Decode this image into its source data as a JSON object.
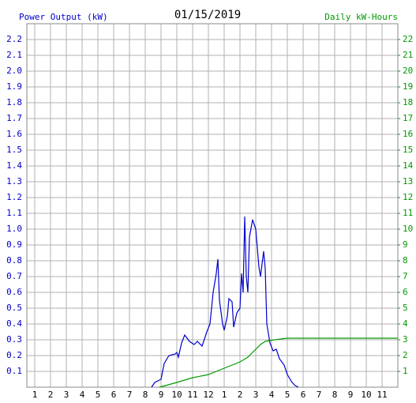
{
  "chart_data": {
    "type": "line",
    "title": "01/15/2019",
    "ylabel": "Power Output (kW)",
    "y2label": "Daily kW-Hours",
    "xlim": [
      0.5,
      24
    ],
    "ylim": [
      0,
      2.3
    ],
    "y2lim": [
      0,
      23
    ],
    "xticks": [
      1,
      2,
      3,
      4,
      5,
      6,
      7,
      8,
      9,
      10,
      11,
      12,
      {
        "value": 13,
        "label": "1"
      },
      {
        "value": 14,
        "label": "2"
      },
      {
        "value": 15,
        "label": "3"
      },
      {
        "value": 16,
        "label": "4"
      },
      {
        "value": 17,
        "label": "5"
      },
      {
        "value": 18,
        "label": "6"
      },
      {
        "value": 19,
        "label": "7"
      },
      {
        "value": 20,
        "label": "8"
      },
      {
        "value": 21,
        "label": "9"
      },
      {
        "value": 22,
        "label": "10"
      },
      {
        "value": 23,
        "label": "11"
      }
    ],
    "yticks": [
      0.1,
      0.2,
      0.3,
      0.4,
      0.5,
      0.6,
      0.7,
      0.8,
      0.9,
      {
        "value": 1,
        "label": "1.0"
      },
      1.1,
      1.2,
      1.3,
      1.4,
      1.5,
      1.6,
      1.7,
      1.8,
      1.9,
      {
        "value": 2,
        "label": "2.0"
      },
      2.1,
      2.2
    ],
    "y2ticks": [
      1,
      2,
      3,
      4,
      5,
      6,
      7,
      8,
      9,
      10,
      11,
      12,
      13,
      14,
      15,
      16,
      17,
      18,
      19,
      20,
      21,
      22
    ],
    "grid": true,
    "series": [
      {
        "name": "Power Output (kW)",
        "color": "#0000cc",
        "x": [
          8.4,
          8.6,
          9.0,
          9.2,
          9.5,
          9.9,
          10.0,
          10.1,
          10.3,
          10.5,
          10.8,
          11.1,
          11.3,
          11.6,
          11.9,
          12.1,
          12.3,
          12.5,
          12.6,
          12.7,
          12.9,
          13.0,
          13.2,
          13.3,
          13.5,
          13.6,
          13.8,
          14.0,
          14.1,
          14.2,
          14.3,
          14.4,
          14.5,
          14.6,
          14.8,
          15.0,
          15.2,
          15.3,
          15.5,
          15.6,
          15.7,
          15.9,
          16.1,
          16.3,
          16.5,
          16.8,
          17.0,
          17.3,
          17.5,
          17.7
        ],
        "values": [
          0,
          0.03,
          0.05,
          0.15,
          0.2,
          0.21,
          0.22,
          0.19,
          0.28,
          0.33,
          0.29,
          0.27,
          0.29,
          0.26,
          0.35,
          0.4,
          0.6,
          0.72,
          0.81,
          0.55,
          0.4,
          0.36,
          0.45,
          0.56,
          0.54,
          0.38,
          0.47,
          0.5,
          0.72,
          0.6,
          1.08,
          0.7,
          0.6,
          0.95,
          1.06,
          1.0,
          0.76,
          0.7,
          0.86,
          0.75,
          0.4,
          0.28,
          0.23,
          0.24,
          0.18,
          0.14,
          0.08,
          0.03,
          0.01,
          0
        ]
      },
      {
        "name": "Daily kW-Hours",
        "color": "#009900",
        "axis": "y2",
        "x": [
          8.9,
          10.0,
          11.0,
          12.0,
          12.5,
          13.0,
          14.0,
          14.5,
          15.0,
          15.3,
          15.6,
          16.2,
          17.0,
          18.0,
          24.0
        ],
        "values": [
          0,
          0.3,
          0.6,
          0.8,
          1.0,
          1.2,
          1.6,
          1.9,
          2.4,
          2.7,
          2.9,
          3.0,
          3.1,
          3.1,
          3.1
        ]
      }
    ]
  }
}
